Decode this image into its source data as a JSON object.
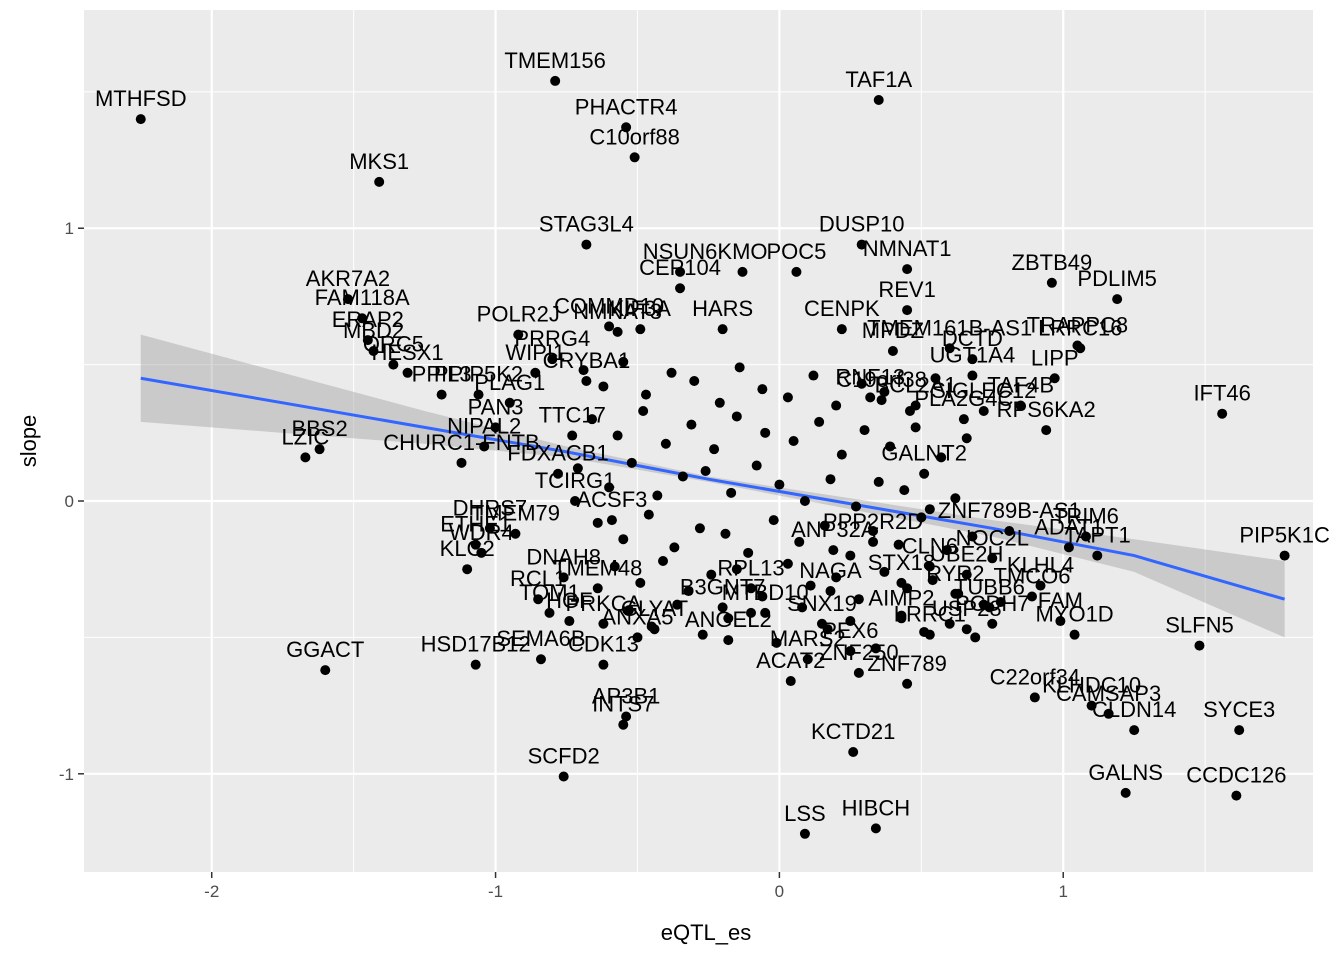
{
  "chart_data": {
    "type": "scatter",
    "xlabel": "eQTL_es",
    "ylabel": "slope",
    "xlim": [
      -2.45,
      1.88
    ],
    "ylim": [
      -1.36,
      1.8
    ],
    "x_ticks": [
      -2,
      -1,
      0,
      1
    ],
    "x_tick_labels": [
      "-2",
      "-1",
      "0",
      "1"
    ],
    "y_ticks": [
      -1,
      0,
      1
    ],
    "y_tick_labels": [
      "-1",
      "0",
      "1"
    ],
    "grid": true,
    "legend": "none",
    "trend": {
      "method": "lm",
      "x": [
        -2.25,
        -1.75,
        -1.25,
        -0.75,
        -0.25,
        0.25,
        0.75,
        1.25,
        1.78
      ],
      "y": [
        0.45,
        0.36,
        0.27,
        0.18,
        0.08,
        -0.01,
        -0.1,
        -0.2,
        -0.36
      ],
      "lower": [
        0.29,
        0.25,
        0.21,
        0.16,
        0.07,
        -0.03,
        -0.13,
        -0.26,
        -0.5
      ],
      "upper": [
        0.61,
        0.47,
        0.33,
        0.2,
        0.09,
        0.01,
        -0.07,
        -0.14,
        -0.22
      ]
    },
    "labeled_points": [
      {
        "label": "MTHFSD",
        "x": -2.25,
        "y": 1.4
      },
      {
        "label": "TMEM156",
        "x": -0.79,
        "y": 1.54
      },
      {
        "label": "TAF1A",
        "x": 0.35,
        "y": 1.47
      },
      {
        "label": "PHACTR4",
        "x": -0.54,
        "y": 1.37
      },
      {
        "label": "C10orf88",
        "x": -0.51,
        "y": 1.26
      },
      {
        "label": "MKS1",
        "x": -1.41,
        "y": 1.17
      },
      {
        "label": "STAG3L4",
        "x": -0.68,
        "y": 0.94
      },
      {
        "label": "DUSP10",
        "x": 0.29,
        "y": 0.94
      },
      {
        "label": "NMNAT1",
        "x": 0.45,
        "y": 0.85
      },
      {
        "label": "NSUN6",
        "x": -0.35,
        "y": 0.84
      },
      {
        "label": "KMO",
        "x": -0.13,
        "y": 0.84
      },
      {
        "label": "POC5",
        "x": 0.06,
        "y": 0.84
      },
      {
        "label": "ZBTB49",
        "x": 0.96,
        "y": 0.8
      },
      {
        "label": "PDLIM5",
        "x": 1.19,
        "y": 0.74
      },
      {
        "label": "CEP104",
        "x": -0.35,
        "y": 0.78
      },
      {
        "label": "AKR7A2",
        "x": -1.52,
        "y": 0.74
      },
      {
        "label": "FAM118A",
        "x": -1.47,
        "y": 0.67
      },
      {
        "label": "REV1",
        "x": 0.45,
        "y": 0.7
      },
      {
        "label": "COMMD10",
        "x": -0.6,
        "y": 0.64
      },
      {
        "label": "NMNAT3",
        "x": -0.57,
        "y": 0.62
      },
      {
        "label": "KIF3A",
        "x": -0.49,
        "y": 0.63
      },
      {
        "label": "POLR2J",
        "x": -0.92,
        "y": 0.61
      },
      {
        "label": "HARS",
        "x": -0.2,
        "y": 0.63
      },
      {
        "label": "CENPK",
        "x": 0.22,
        "y": 0.63
      },
      {
        "label": "TRAPPC8",
        "x": 1.05,
        "y": 0.57
      },
      {
        "label": "ERAP2",
        "x": -1.45,
        "y": 0.59
      },
      {
        "label": "MBD2",
        "x": -1.43,
        "y": 0.55
      },
      {
        "label": "PRRG4",
        "x": -0.8,
        "y": 0.52
      },
      {
        "label": "ORC5",
        "x": -1.36,
        "y": 0.5
      },
      {
        "label": "WIPI1",
        "x": -0.86,
        "y": 0.47
      },
      {
        "label": "TMEM161B-AS1",
        "x": 0.6,
        "y": 0.56
      },
      {
        "label": "LRRC16",
        "x": 1.06,
        "y": 0.56
      },
      {
        "label": "DCTD",
        "x": 0.68,
        "y": 0.52
      },
      {
        "label": "MPDZ",
        "x": 0.4,
        "y": 0.55
      },
      {
        "label": "LIPP",
        "x": 0.97,
        "y": 0.45
      },
      {
        "label": "UGT1A4",
        "x": 0.68,
        "y": 0.46
      },
      {
        "label": "HESX1",
        "x": -1.31,
        "y": 0.47
      },
      {
        "label": "CRYBA1",
        "x": -0.68,
        "y": 0.44
      },
      {
        "label": "IFT46",
        "x": 1.56,
        "y": 0.32
      },
      {
        "label": "PPIL3",
        "x": -1.19,
        "y": 0.39
      },
      {
        "label": "PPIP5K2",
        "x": -1.06,
        "y": 0.39
      },
      {
        "label": "PLAG1",
        "x": -0.95,
        "y": 0.36
      },
      {
        "label": "TAF4B",
        "x": 0.85,
        "y": 0.35
      },
      {
        "label": "C19orf38",
        "x": 0.36,
        "y": 0.37
      },
      {
        "label": "BCL2A1",
        "x": 0.48,
        "y": 0.35
      },
      {
        "label": "RNF13",
        "x": 0.32,
        "y": 0.38
      },
      {
        "label": "SIGLEC12",
        "x": 0.72,
        "y": 0.33
      },
      {
        "label": "RPS6KA2",
        "x": 0.94,
        "y": 0.26
      },
      {
        "label": "PLA2G4C",
        "x": 0.65,
        "y": 0.3
      },
      {
        "label": "BBS2",
        "x": -1.62,
        "y": 0.19
      },
      {
        "label": "LZIC",
        "x": -1.67,
        "y": 0.16
      },
      {
        "label": "PAN3",
        "x": -1.0,
        "y": 0.27
      },
      {
        "label": "NIPAL2",
        "x": -1.04,
        "y": 0.2
      },
      {
        "label": "CHURC1-FNTB",
        "x": -1.12,
        "y": 0.14
      },
      {
        "label": "TTC17",
        "x": -0.73,
        "y": 0.24
      },
      {
        "label": "GALNT2",
        "x": 0.51,
        "y": 0.1
      },
      {
        "label": "FDXACB1",
        "x": -0.78,
        "y": 0.1
      },
      {
        "label": "TCIRG1",
        "x": -0.72,
        "y": 0.0
      },
      {
        "label": "ACSF3",
        "x": -0.59,
        "y": -0.07
      },
      {
        "label": "DHRS7",
        "x": -1.02,
        "y": -0.1
      },
      {
        "label": "TMEM79",
        "x": -0.93,
        "y": -0.12
      },
      {
        "label": "ETHE1",
        "x": -1.07,
        "y": -0.16
      },
      {
        "label": "WDR4",
        "x": -1.05,
        "y": -0.19
      },
      {
        "label": "KLC2",
        "x": -1.1,
        "y": -0.25
      },
      {
        "label": "ANP32A",
        "x": 0.19,
        "y": -0.18
      },
      {
        "label": "PPP2R2D",
        "x": 0.33,
        "y": -0.15
      },
      {
        "label": "ZNF789B-AS1",
        "x": 0.81,
        "y": -0.11
      },
      {
        "label": "TRIM6",
        "x": 1.08,
        "y": -0.13
      },
      {
        "label": "ADAT1",
        "x": 1.02,
        "y": -0.17
      },
      {
        "label": "TAPT1",
        "x": 1.12,
        "y": -0.2
      },
      {
        "label": "PIP5K1C",
        "x": 1.78,
        "y": -0.2
      },
      {
        "label": "NOC2L",
        "x": 0.75,
        "y": -0.21
      },
      {
        "label": "CLN6",
        "x": 0.53,
        "y": -0.24
      },
      {
        "label": "UBE2H",
        "x": 0.66,
        "y": -0.27
      },
      {
        "label": "KLHL4",
        "x": 0.92,
        "y": -0.31
      },
      {
        "label": "DNAH8",
        "x": -0.76,
        "y": -0.28
      },
      {
        "label": "TMEM48",
        "x": -0.64,
        "y": -0.32
      },
      {
        "label": "STX18",
        "x": 0.43,
        "y": -0.3
      },
      {
        "label": "NAGA",
        "x": 0.18,
        "y": -0.33
      },
      {
        "label": "RPL13",
        "x": -0.1,
        "y": -0.32
      },
      {
        "label": "RYR2",
        "x": 0.62,
        "y": -0.34
      },
      {
        "label": "TMCO6",
        "x": 0.89,
        "y": -0.35
      },
      {
        "label": "TUBB6",
        "x": 0.74,
        "y": -0.39
      },
      {
        "label": "RCL1",
        "x": -0.85,
        "y": -0.36
      },
      {
        "label": "TOM1",
        "x": -0.81,
        "y": -0.41
      },
      {
        "label": "HGF",
        "x": -0.74,
        "y": -0.44
      },
      {
        "label": "PRKCA",
        "x": -0.62,
        "y": -0.45
      },
      {
        "label": "GLYAT",
        "x": -0.44,
        "y": -0.47
      },
      {
        "label": "B3GNT7",
        "x": -0.2,
        "y": -0.39
      },
      {
        "label": "MTBD10",
        "x": -0.05,
        "y": -0.41
      },
      {
        "label": "SNX19",
        "x": 0.15,
        "y": -0.45
      },
      {
        "label": "AIMP2",
        "x": 0.43,
        "y": -0.43
      },
      {
        "label": "LRRC1",
        "x": 0.53,
        "y": -0.49
      },
      {
        "label": "USP28",
        "x": 0.66,
        "y": -0.47
      },
      {
        "label": "PCDH7",
        "x": 0.75,
        "y": -0.45
      },
      {
        "label": "FAM",
        "x": 0.99,
        "y": -0.44
      },
      {
        "label": "MYO1D",
        "x": 1.04,
        "y": -0.49
      },
      {
        "label": "SLFN5",
        "x": 1.48,
        "y": -0.53
      },
      {
        "label": "GGACT",
        "x": -1.6,
        "y": -0.62
      },
      {
        "label": "HSD17B12",
        "x": -1.07,
        "y": -0.6
      },
      {
        "label": "SEMA6B",
        "x": -0.84,
        "y": -0.58
      },
      {
        "label": "ANXA5",
        "x": -0.5,
        "y": -0.5
      },
      {
        "label": "CDK13",
        "x": -0.62,
        "y": -0.6
      },
      {
        "label": "ANGEL2",
        "x": -0.18,
        "y": -0.51
      },
      {
        "label": "MARS2",
        "x": 0.1,
        "y": -0.58
      },
      {
        "label": "PEX6",
        "x": 0.25,
        "y": -0.55
      },
      {
        "label": "ACAT2",
        "x": 0.04,
        "y": -0.66
      },
      {
        "label": "ZNF250",
        "x": 0.28,
        "y": -0.63
      },
      {
        "label": "ZNF789",
        "x": 0.45,
        "y": -0.67
      },
      {
        "label": "C22orf34",
        "x": 0.9,
        "y": -0.72
      },
      {
        "label": "KLHDC10",
        "x": 1.1,
        "y": -0.75
      },
      {
        "label": "CAMSAP3",
        "x": 1.16,
        "y": -0.78
      },
      {
        "label": "SYCE3",
        "x": 1.62,
        "y": -0.84
      },
      {
        "label": "AP3B1",
        "x": -0.54,
        "y": -0.79
      },
      {
        "label": "INTS7",
        "x": -0.55,
        "y": -0.82
      },
      {
        "label": "KCTD21",
        "x": 0.26,
        "y": -0.92
      },
      {
        "label": "CLDN14",
        "x": 1.25,
        "y": -0.84
      },
      {
        "label": "GALNS",
        "x": 1.22,
        "y": -1.07
      },
      {
        "label": "CCDC126",
        "x": 1.61,
        "y": -1.08
      },
      {
        "label": "SCFD2",
        "x": -0.76,
        "y": -1.01
      },
      {
        "label": "HIBCH",
        "x": 0.34,
        "y": -1.2
      },
      {
        "label": "LSS",
        "x": 0.09,
        "y": -1.22
      }
    ],
    "unlabeled_points": {
      "x": [
        -0.69,
        -0.62,
        -0.55,
        -0.47,
        -0.38,
        -0.3,
        -0.21,
        -0.14,
        -0.06,
        0.03,
        0.12,
        0.2,
        0.29,
        0.37,
        0.46,
        0.55,
        -0.66,
        -0.57,
        -0.48,
        -0.4,
        -0.31,
        -0.23,
        -0.15,
        -0.05,
        0.05,
        0.14,
        0.22,
        0.3,
        0.39,
        0.48,
        0.57,
        0.66,
        -0.71,
        -0.6,
        -0.52,
        -0.43,
        -0.34,
        -0.26,
        -0.17,
        -0.08,
        0.0,
        0.09,
        0.18,
        0.27,
        0.35,
        0.44,
        0.53,
        0.62,
        -0.64,
        -0.55,
        -0.46,
        -0.37,
        -0.28,
        -0.19,
        -0.11,
        -0.02,
        0.07,
        0.16,
        0.25,
        0.33,
        0.42,
        0.5,
        0.59,
        0.68,
        -0.58,
        -0.49,
        -0.41,
        -0.32,
        -0.24,
        -0.15,
        -0.06,
        0.03,
        0.11,
        0.2,
        0.28,
        0.37,
        0.45,
        0.54,
        0.63,
        0.72,
        -0.53,
        -0.45,
        -0.36,
        -0.27,
        -0.18,
        -0.1,
        -0.01,
        0.08,
        0.17,
        0.25,
        0.34,
        0.43,
        0.51,
        0.6,
        0.69,
        0.78
      ],
      "y": [
        0.48,
        0.42,
        0.51,
        0.39,
        0.47,
        0.44,
        0.36,
        0.49,
        0.41,
        0.38,
        0.46,
        0.35,
        0.43,
        0.4,
        0.33,
        0.45,
        0.3,
        0.24,
        0.33,
        0.21,
        0.28,
        0.19,
        0.31,
        0.25,
        0.22,
        0.29,
        0.17,
        0.26,
        0.2,
        0.27,
        0.16,
        0.23,
        0.12,
        0.05,
        0.14,
        0.02,
        0.09,
        0.11,
        0.03,
        0.13,
        0.06,
        0.0,
        0.08,
        -0.02,
        0.07,
        0.04,
        -0.03,
        0.01,
        -0.08,
        -0.14,
        -0.05,
        -0.17,
        -0.1,
        -0.12,
        -0.19,
        -0.07,
        -0.15,
        -0.09,
        -0.2,
        -0.11,
        -0.16,
        -0.06,
        -0.18,
        -0.13,
        -0.24,
        -0.3,
        -0.22,
        -0.33,
        -0.27,
        -0.25,
        -0.35,
        -0.23,
        -0.31,
        -0.28,
        -0.36,
        -0.26,
        -0.32,
        -0.29,
        -0.34,
        -0.38,
        -0.4,
        -0.46,
        -0.38,
        -0.49,
        -0.43,
        -0.41,
        -0.52,
        -0.39,
        -0.47,
        -0.44,
        -0.54,
        -0.42,
        -0.48,
        -0.45,
        -0.5,
        -0.37
      ]
    }
  }
}
